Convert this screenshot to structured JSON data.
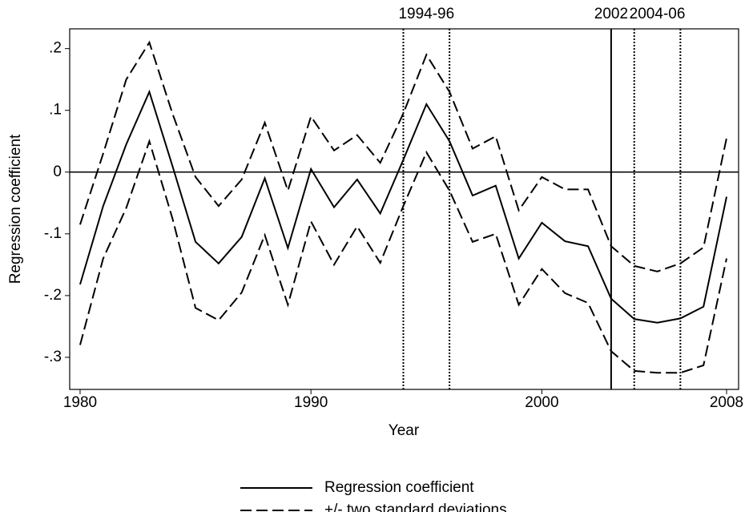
{
  "chart_data": {
    "type": "line",
    "xlabel": "Year",
    "ylabel": "Regression coefficient",
    "x": [
      1980,
      1981,
      1982,
      1983,
      1984,
      1985,
      1986,
      1987,
      1988,
      1989,
      1990,
      1991,
      1992,
      1993,
      1994,
      1995,
      1996,
      1997,
      1998,
      1999,
      2000,
      2001,
      2002,
      2003,
      2004,
      2005,
      2006,
      2007,
      2008
    ],
    "series": [
      {
        "name": "Regression coefficient",
        "color": "#000000",
        "dash": "solid",
        "values": [
          -0.182,
          -0.055,
          0.045,
          0.13,
          0.01,
          -0.113,
          -0.148,
          -0.105,
          -0.01,
          -0.123,
          0.005,
          -0.057,
          -0.012,
          -0.067,
          0.02,
          0.11,
          0.05,
          -0.038,
          -0.022,
          -0.14,
          -0.082,
          -0.112,
          -0.12,
          -0.205,
          -0.238,
          -0.244,
          -0.237,
          -0.218,
          -0.04
        ]
      },
      {
        "name": "+/- two standard deviations",
        "color": "#000000",
        "dash": "dashed",
        "values": [
          -0.085,
          0.03,
          0.15,
          0.21,
          0.095,
          -0.008,
          -0.055,
          -0.012,
          0.08,
          -0.03,
          0.09,
          0.035,
          0.06,
          0.015,
          0.095,
          0.19,
          0.13,
          0.038,
          0.058,
          -0.062,
          -0.008,
          -0.028,
          -0.028,
          -0.12,
          -0.152,
          -0.161,
          -0.148,
          -0.122,
          0.055
        ]
      },
      {
        "color": "#000000",
        "dash": "dashed",
        "values": [
          -0.28,
          -0.14,
          -0.058,
          0.05,
          -0.075,
          -0.22,
          -0.24,
          -0.195,
          -0.102,
          -0.215,
          -0.08,
          -0.15,
          -0.088,
          -0.147,
          -0.055,
          0.032,
          -0.03,
          -0.113,
          -0.1,
          -0.215,
          -0.157,
          -0.196,
          -0.212,
          -0.29,
          -0.322,
          -0.325,
          -0.325,
          -0.313,
          -0.14
        ]
      }
    ],
    "xlim": [
      1979.55,
      2008.52
    ],
    "xticks": [
      1980,
      1990,
      2000,
      2008
    ],
    "ylim": [
      -0.352,
      0.232
    ],
    "yticks": [
      {
        "value": -0.3,
        "label": "-.3"
      },
      {
        "value": -0.2,
        "label": "-.2"
      },
      {
        "value": -0.1,
        "label": "-.1"
      },
      0,
      {
        "value": 0.1,
        "label": ".1"
      },
      {
        "value": 0.2,
        "label": ".2"
      }
    ],
    "hline": 0,
    "vlines": [
      {
        "x": 1994,
        "style": "dotted"
      },
      {
        "x": 1996,
        "style": "dotted"
      },
      {
        "x": 2003,
        "style": "solid"
      },
      {
        "x": 2004,
        "style": "dotted"
      },
      {
        "x": 2006,
        "style": "dotted"
      }
    ],
    "period_labels": [
      {
        "text": "1994-96",
        "x": [
          1994,
          1996
        ]
      },
      {
        "text": "2002",
        "x": [
          2003,
          2003
        ]
      },
      {
        "text": "2004-06",
        "x": [
          2004,
          2006
        ]
      }
    ]
  }
}
